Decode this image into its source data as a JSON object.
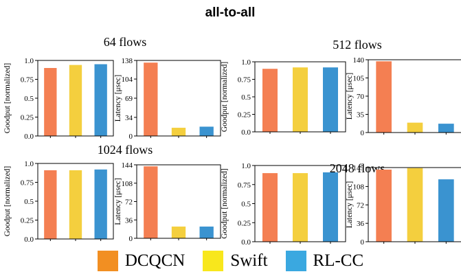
{
  "title": "all-to-all",
  "legend": [
    {
      "label": "DCQCN",
      "color": "#f28f22"
    },
    {
      "label": "Swift",
      "color": "#f8e71c"
    },
    {
      "label": "RL-CC",
      "color": "#3aa8e0"
    }
  ],
  "bar_colors": [
    "#f47f52",
    "#f4cf3e",
    "#3a93d0"
  ],
  "chart_data": [
    {
      "type": "bar",
      "group": "64 flows",
      "metric": "goodput",
      "categories": [
        "DCQCN",
        "Swift",
        "RL-CC"
      ],
      "values": [
        0.9,
        0.94,
        0.95
      ],
      "ylabel": "Goodput [normalized]",
      "ylim": [
        0,
        1.0
      ],
      "yticks": [
        0.0,
        0.25,
        0.5,
        0.75,
        1.0
      ],
      "ytick_labels": [
        "0.0",
        "0.25",
        "0.5",
        "0.75",
        "1.0"
      ]
    },
    {
      "type": "bar",
      "group": "64 flows",
      "metric": "latency",
      "categories": [
        "DCQCN",
        "Swift",
        "RL-CC"
      ],
      "values": [
        134,
        15,
        17
      ],
      "ylabel": "Latency [μsec]",
      "ylim": [
        0,
        138
      ],
      "yticks": [
        0,
        34,
        69,
        104,
        138
      ],
      "ytick_labels": [
        "0",
        "34",
        "69",
        "104",
        "138"
      ]
    },
    {
      "type": "bar",
      "group": "512 flows",
      "metric": "goodput",
      "categories": [
        "DCQCN",
        "Swift",
        "RL-CC"
      ],
      "values": [
        0.9,
        0.92,
        0.92
      ],
      "ylabel": "Goodput [normalized]",
      "ylim": [
        0,
        1.0
      ],
      "yticks": [
        0.0,
        0.25,
        0.5,
        0.75,
        1.0
      ],
      "ytick_labels": [
        "0.0",
        "0.25",
        "0.5",
        "0.75",
        "1.0"
      ]
    },
    {
      "type": "bar",
      "group": "512 flows",
      "metric": "latency",
      "categories": [
        "DCQCN",
        "Swift",
        "RL-CC"
      ],
      "values": [
        137,
        19,
        17
      ],
      "ylabel": "Latency [μsec]",
      "ylim": [
        0,
        140
      ],
      "yticks": [
        0,
        35,
        70,
        105,
        140
      ],
      "ytick_labels": [
        "0",
        "35",
        "70",
        "105",
        "140"
      ]
    },
    {
      "type": "bar",
      "group": "1024 flows",
      "metric": "goodput",
      "categories": [
        "DCQCN",
        "Swift",
        "RL-CC"
      ],
      "values": [
        0.91,
        0.91,
        0.92
      ],
      "ylabel": "Goodput [normalized]",
      "ylim": [
        0,
        1.0
      ],
      "yticks": [
        0.0,
        0.25,
        0.5,
        0.75,
        1.0
      ],
      "ytick_labels": [
        "0.0",
        "0.25",
        "0.5",
        "0.75",
        "1.0"
      ]
    },
    {
      "type": "bar",
      "group": "1024 flows",
      "metric": "latency",
      "categories": [
        "DCQCN",
        "Swift",
        "RL-CC"
      ],
      "values": [
        141,
        23,
        23
      ],
      "ylabel": "Latency [μsec]",
      "ylim": [
        0,
        144
      ],
      "yticks": [
        0,
        36,
        72,
        108,
        144
      ],
      "ytick_labels": [
        "0",
        "36",
        "72",
        "108",
        "144"
      ]
    },
    {
      "type": "bar",
      "group": "2048 flows",
      "metric": "goodput",
      "categories": [
        "DCQCN",
        "Swift",
        "RL-CC"
      ],
      "values": [
        0.9,
        0.9,
        0.91
      ],
      "ylabel": "Goodput [normalized]",
      "ylim": [
        0,
        1.0
      ],
      "yticks": [
        0.0,
        0.25,
        0.5,
        0.75,
        1.0
      ],
      "ytick_labels": [
        "0.0",
        "0.25",
        "0.5",
        "0.75",
        "1.0"
      ]
    },
    {
      "type": "bar",
      "group": "2048 flows",
      "metric": "latency",
      "categories": [
        "DCQCN",
        "Swift",
        "RL-CC"
      ],
      "values": [
        141,
        144,
        122
      ],
      "ylabel": "Latency [μsec]",
      "ylim": [
        0,
        145
      ],
      "yticks": [
        0,
        36,
        72,
        108,
        145
      ],
      "ytick_labels": [
        "0",
        "36",
        "72",
        "108",
        "145"
      ]
    }
  ]
}
